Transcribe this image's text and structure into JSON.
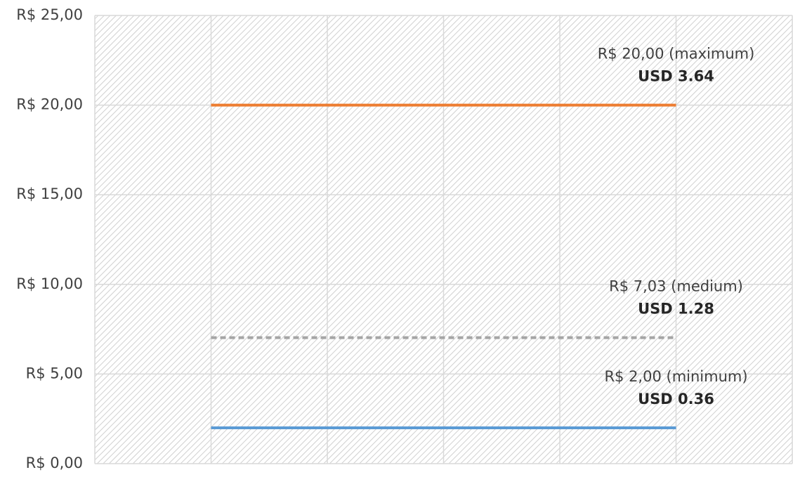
{
  "chart_data": {
    "type": "line",
    "categories": [
      null,
      null,
      null,
      null,
      null,
      null,
      null
    ],
    "series": [
      {
        "color": "#ed7d31",
        "dash": false,
        "values": [
          null,
          20,
          20,
          20,
          20,
          20,
          null
        ],
        "annotation": [
          "R$ 20,00 (maximum)",
          "USD 3.64"
        ]
      },
      {
        "color": "#a5a5a5",
        "dash": true,
        "values": [
          null,
          7.03,
          7.03,
          7.03,
          7.03,
          7.03,
          null
        ],
        "annotation": [
          "R$ 7,03 (medium)",
          "USD 1.28"
        ]
      },
      {
        "color": "#5b9bd5",
        "dash": false,
        "values": [
          null,
          2,
          2,
          2,
          2,
          2,
          null
        ],
        "annotation": [
          "R$ 2,00 (minimum)",
          "USD 0.36"
        ]
      }
    ],
    "ylim": [
      0,
      25
    ],
    "yticks": [
      {
        "value": 0,
        "label": "R$ 0,00"
      },
      {
        "value": 5,
        "label": "R$ 5,00"
      },
      {
        "value": 10,
        "label": "R$ 10,00"
      },
      {
        "value": 15,
        "label": "R$ 15,00"
      },
      {
        "value": 20,
        "label": "R$ 20,00"
      },
      {
        "value": 25,
        "label": "R$ 25,00"
      }
    ],
    "grid": true,
    "hatched_background": true
  }
}
